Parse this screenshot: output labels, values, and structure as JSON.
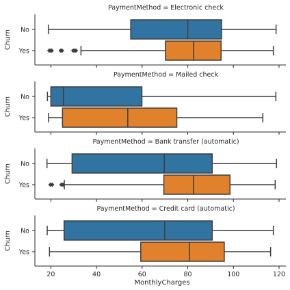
{
  "chart_data": {
    "type": "box",
    "xlabel": "MonthlyCharges",
    "ylabel": "Churn",
    "xlim": [
      13,
      123
    ],
    "xticks": [
      20,
      40,
      60,
      80,
      100,
      120
    ],
    "categories": [
      "No",
      "Yes"
    ],
    "colors": {
      "No": "#3274a1",
      "Yes": "#e1812c"
    },
    "panels": [
      {
        "title": "PaymentMethod = Electronic check",
        "boxes": [
          {
            "category": "No",
            "whisker_low": 18.9,
            "q1": 55.0,
            "median": 80.0,
            "q3": 94.8,
            "whisker_high": 118.7,
            "outliers": []
          },
          {
            "category": "Yes",
            "whisker_low": 33.2,
            "q1": 70.2,
            "median": 82.6,
            "q3": 94.6,
            "whisker_high": 117.5,
            "outliers": [
              19.3,
              19.9,
              20.4,
              24.3,
              24.9,
              29.8,
              30.4,
              31.0
            ]
          }
        ]
      },
      {
        "title": "PaymentMethod = Mailed check",
        "boxes": [
          {
            "category": "No",
            "whisker_low": 18.5,
            "q1": 20.0,
            "median": 25.5,
            "q3": 59.9,
            "whisker_high": 118.6,
            "outliers": []
          },
          {
            "category": "Yes",
            "whisker_low": 19.0,
            "q1": 25.1,
            "median": 53.7,
            "q3": 75.2,
            "whisker_high": 112.9,
            "outliers": []
          }
        ]
      },
      {
        "title": "PaymentMethod = Bank transfer (automatic)",
        "boxes": [
          {
            "category": "No",
            "whisker_low": 18.3,
            "q1": 29.3,
            "median": 69.7,
            "q3": 90.7,
            "whisker_high": 118.9,
            "outliers": []
          },
          {
            "category": "Yes",
            "whisker_low": 25.9,
            "q1": 69.5,
            "median": 82.5,
            "q3": 98.5,
            "whisker_high": 118.3,
            "outliers": [
              19.8,
              20.6,
              24.6,
              25.3
            ]
          }
        ]
      },
      {
        "title": "PaymentMethod = Credit card (automatic)",
        "boxes": [
          {
            "category": "No",
            "whisker_low": 18.4,
            "q1": 25.8,
            "median": 69.9,
            "q3": 90.7,
            "whisker_high": 117.5,
            "outliers": []
          },
          {
            "category": "Yes",
            "whisker_low": 19.4,
            "q1": 59.4,
            "median": 80.7,
            "q3": 96.0,
            "whisker_high": 116.3,
            "outliers": []
          }
        ]
      }
    ]
  }
}
